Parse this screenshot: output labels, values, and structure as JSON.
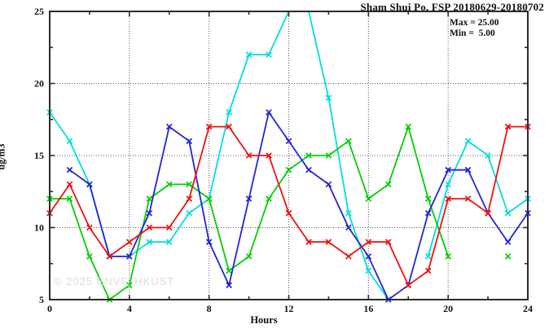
{
  "chart": {
    "title": "Sham Shui Po, FSP 20180629-20180702",
    "legend_lines": {
      "max": "Max = 25.00",
      "min": "Min =  5.00"
    },
    "xlabel": "Hours",
    "ylabel": "ug/m3",
    "watermark": "© 2025 ENVF, HKUST"
  },
  "chart_data": {
    "type": "line",
    "title": "Sham Shui Po, FSP 20180629-20180702",
    "xlabel": "Hours",
    "ylabel": "ug/m3",
    "x": [
      0,
      1,
      2,
      3,
      4,
      5,
      6,
      7,
      8,
      9,
      10,
      11,
      12,
      13,
      14,
      15,
      16,
      17,
      18,
      19,
      20,
      21,
      22,
      23,
      24
    ],
    "series": [
      {
        "name": "series-cyan",
        "color": "#00dede",
        "marker": "x",
        "values": [
          18,
          16,
          13,
          8,
          8,
          9,
          9,
          11,
          12,
          18,
          22,
          22,
          25,
          25,
          19,
          11,
          7,
          5,
          null,
          8,
          13,
          16,
          15,
          11,
          12
        ]
      },
      {
        "name": "series-green",
        "color": "#00d000",
        "marker": "x",
        "values": [
          12,
          12,
          8,
          5,
          6,
          12,
          13,
          13,
          12,
          7,
          8,
          12,
          14,
          15,
          15,
          16,
          12,
          13,
          17,
          12,
          8,
          null,
          null,
          8,
          null
        ]
      },
      {
        "name": "series-blue",
        "color": "#2424d6",
        "marker": "x",
        "values": [
          null,
          14,
          13,
          8,
          8,
          11,
          17,
          16,
          9,
          6,
          12,
          18,
          16,
          14,
          13,
          10,
          8,
          5,
          6,
          11,
          14,
          14,
          11,
          9,
          11
        ]
      },
      {
        "name": "series-red",
        "color": "#ee1111",
        "marker": "x",
        "values": [
          11,
          13,
          10,
          8,
          9,
          10,
          10,
          12,
          17,
          17,
          15,
          15,
          11,
          9,
          9,
          8,
          9,
          9,
          6,
          7,
          12,
          12,
          11,
          17,
          17
        ]
      }
    ],
    "xlim": [
      0,
      24
    ],
    "ylim": [
      5,
      25
    ],
    "xticks": [
      0,
      4,
      8,
      12,
      16,
      20,
      24
    ],
    "xminorticks": [
      2,
      6,
      10,
      14,
      18,
      22
    ],
    "yticks": [
      5,
      10,
      15,
      20,
      25
    ],
    "yminorticks": [
      7.5,
      12.5,
      17.5,
      22.5
    ],
    "grid_x": [
      4,
      8,
      12,
      16,
      20
    ],
    "grid_y": [
      10,
      15,
      20
    ],
    "grid_style": "dotted",
    "legend_position": "top-right",
    "frame_color": "#2b2b2b",
    "grid_color": "#555555",
    "clip_markers_at_ymax": true
  }
}
